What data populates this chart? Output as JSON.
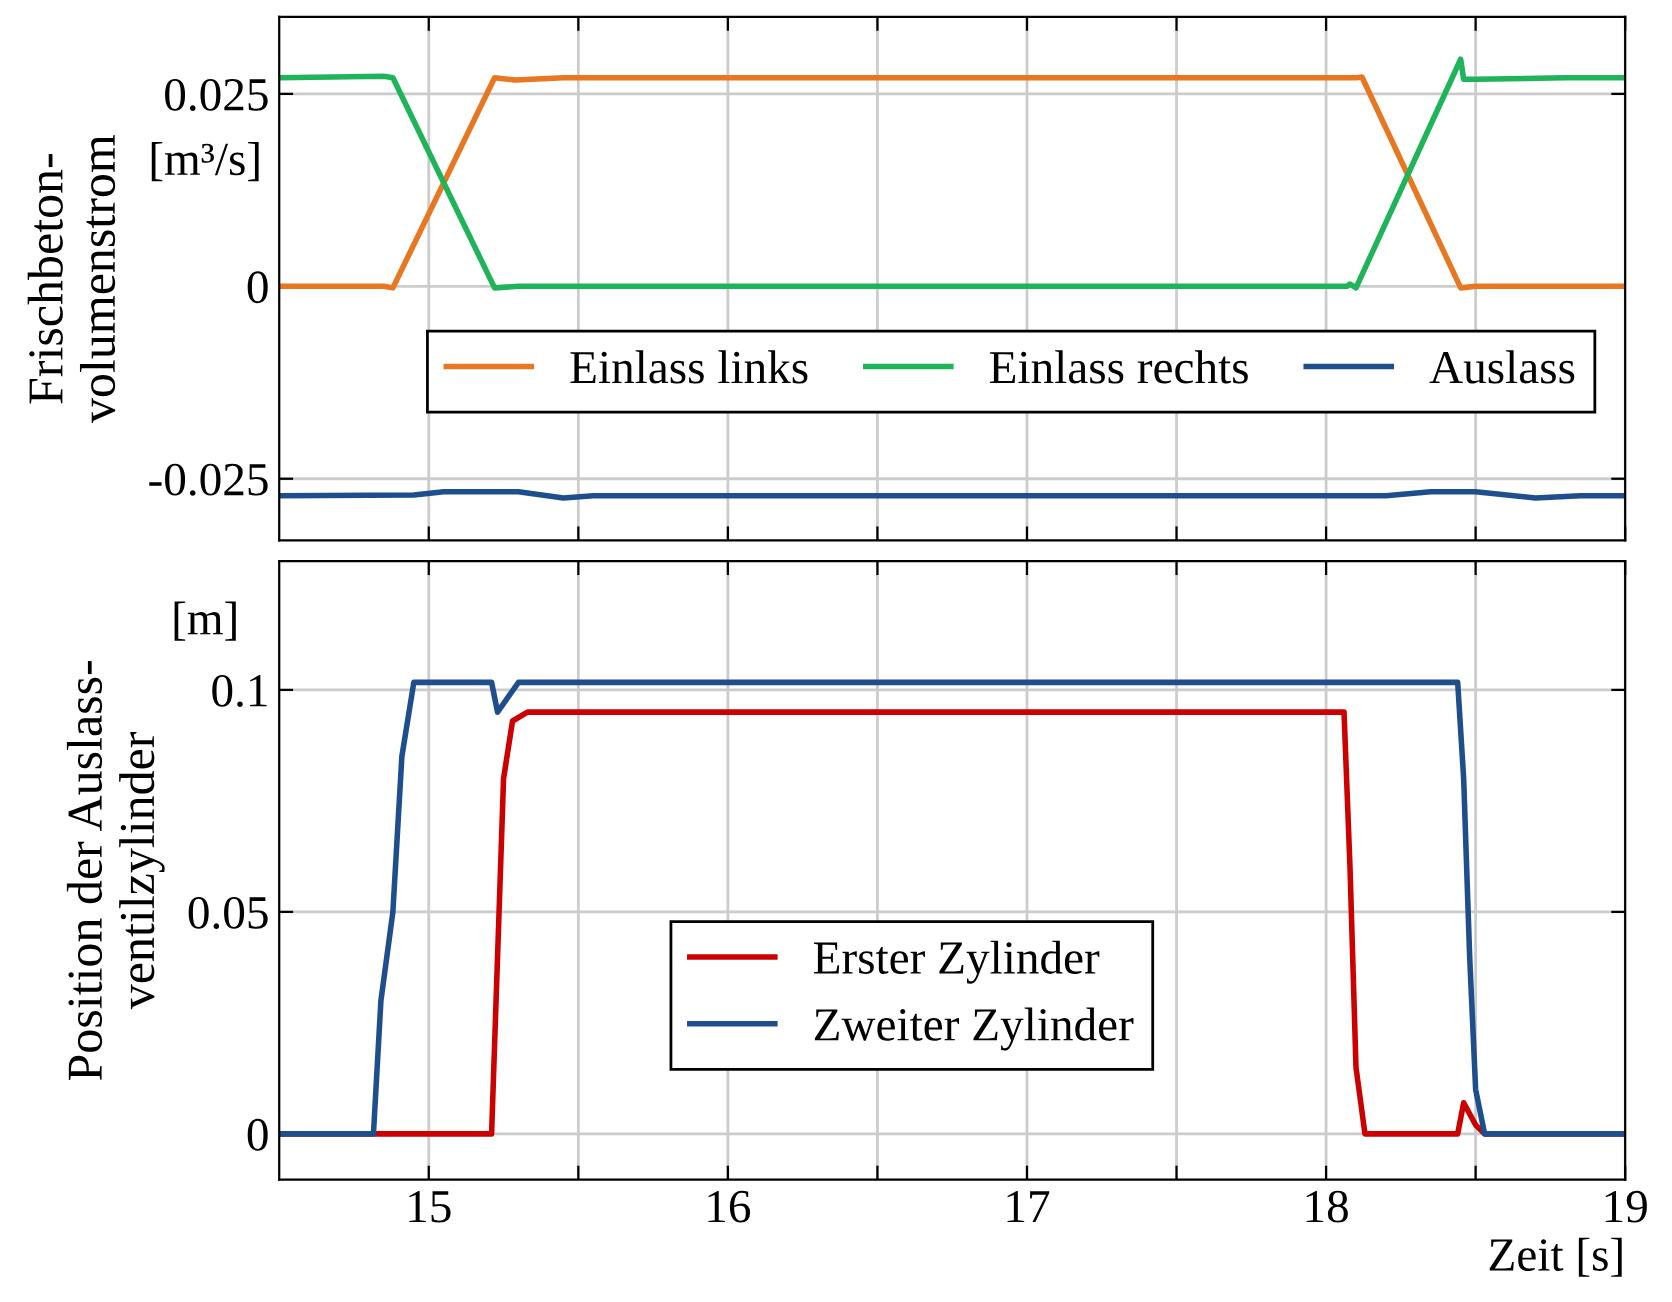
{
  "chart_data": [
    {
      "type": "line",
      "ylabel": "Frischbeton-\nvolumenstrom",
      "annotations": [
        "[m³/s]"
      ],
      "xlim": [
        14.5,
        19
      ],
      "ylim": [
        -0.033,
        0.035
      ],
      "xticks": [
        15,
        {
          "value": 15.5,
          "label": null
        },
        16,
        {
          "value": 16.5,
          "label": null
        },
        17,
        {
          "value": 17.5,
          "label": null
        },
        18,
        {
          "value": 18.5,
          "label": null
        },
        19
      ],
      "yticks": [
        {
          "value": -0.025,
          "label": "-0.025"
        },
        0,
        0.025
      ],
      "tick_labels": "y",
      "grid": true,
      "legend": "lower right",
      "series": [
        {
          "name": "Einlass links",
          "color": "#e87722",
          "x": [
            14.5,
            14.85,
            14.88,
            15.22,
            15.29,
            15.45,
            18.1,
            18.12,
            18.45,
            18.5,
            19
          ],
          "values": [
            0,
            0,
            -0.0002,
            0.0271,
            0.0268,
            0.0271,
            0.0271,
            0.0272,
            -0.0002,
            0,
            0
          ]
        },
        {
          "name": "Einlass rechts",
          "color": "#1fb45a",
          "x": [
            14.5,
            14.85,
            14.88,
            15.22,
            15.3,
            18.07,
            18.08,
            18.1,
            18.45,
            18.46,
            18.5,
            18.8,
            19
          ],
          "values": [
            0.0271,
            0.0273,
            0.0271,
            -0.0002,
            0,
            0,
            0.0003,
            -0.0002,
            0.0295,
            0.0269,
            0.0269,
            0.0271,
            0.0271
          ]
        },
        {
          "name": "Auslass",
          "color": "#1f4e8c",
          "x": [
            14.5,
            14.95,
            15.05,
            15.3,
            15.45,
            15.55,
            18.2,
            18.35,
            18.5,
            18.7,
            18.85,
            19
          ],
          "values": [
            -0.0272,
            -0.0271,
            -0.0267,
            -0.0267,
            -0.0275,
            -0.0272,
            -0.0272,
            -0.0267,
            -0.0267,
            -0.0275,
            -0.0272,
            -0.0272
          ]
        }
      ]
    },
    {
      "type": "line",
      "ylabel": "Position der Auslass-\nventilzylinder",
      "xlabel": "Zeit [s]",
      "annotations": [
        "[m]"
      ],
      "xlim": [
        14.5,
        19
      ],
      "ylim": [
        -0.0103,
        0.129
      ],
      "xticks": [
        15,
        {
          "value": 15.5,
          "label": null
        },
        16,
        {
          "value": 16.5,
          "label": null
        },
        17,
        {
          "value": 17.5,
          "label": null
        },
        18,
        {
          "value": 18.5,
          "label": null
        },
        19
      ],
      "yticks": [
        0,
        0.05,
        0.1
      ],
      "grid": true,
      "legend": "bottom",
      "series": [
        {
          "name": "Erster Zylinder",
          "color": "#cc0000",
          "x": [
            14.5,
            15.21,
            15.23,
            15.25,
            15.28,
            15.33,
            18.06,
            18.08,
            18.1,
            18.13,
            18.44,
            18.46,
            18.5,
            18.53,
            19
          ],
          "values": [
            0,
            0,
            0.04,
            0.08,
            0.093,
            0.095,
            0.095,
            0.06,
            0.015,
            0,
            0,
            0.007,
            0.002,
            0,
            0
          ]
        },
        {
          "name": "Zweiter Zylinder",
          "color": "#1f4e8c",
          "x": [
            14.5,
            14.815,
            14.84,
            14.87,
            14.88,
            14.91,
            14.95,
            15.21,
            15.23,
            15.3,
            18.44,
            18.46,
            18.48,
            18.5,
            18.53,
            19
          ],
          "values": [
            0,
            0,
            0.03,
            0.045,
            0.05,
            0.085,
            0.1017,
            0.1017,
            0.095,
            0.1017,
            0.1017,
            0.08,
            0.04,
            0.01,
            0,
            0
          ]
        }
      ]
    }
  ]
}
